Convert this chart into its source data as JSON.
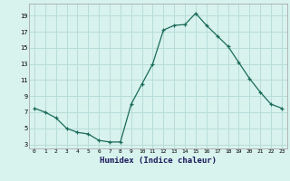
{
  "xlabel": "Humidex (Indice chaleur)",
  "x": [
    0,
    1,
    2,
    3,
    4,
    5,
    6,
    7,
    8,
    9,
    10,
    11,
    12,
    13,
    14,
    15,
    16,
    17,
    18,
    19,
    20,
    21,
    22,
    23
  ],
  "y": [
    7.5,
    7.0,
    6.3,
    5.0,
    4.5,
    4.3,
    3.5,
    3.3,
    3.3,
    8.0,
    10.5,
    13.0,
    17.2,
    17.8,
    17.9,
    19.3,
    17.8,
    16.5,
    15.2,
    13.2,
    11.2,
    9.5,
    8.0,
    7.5
  ],
  "line_color": "#1a6b5a",
  "marker_color": "#1a6b5a",
  "bg_color": "#d8f2ee",
  "grid_color": "#b8ddd8",
  "yticks": [
    3,
    5,
    7,
    9,
    11,
    13,
    15,
    17,
    19
  ],
  "xticks": [
    0,
    1,
    2,
    3,
    4,
    5,
    6,
    7,
    8,
    9,
    10,
    11,
    12,
    13,
    14,
    15,
    16,
    17,
    18,
    19,
    20,
    21,
    22,
    23
  ],
  "ylim": [
    2.5,
    20.5
  ],
  "xlim": [
    -0.5,
    23.5
  ]
}
